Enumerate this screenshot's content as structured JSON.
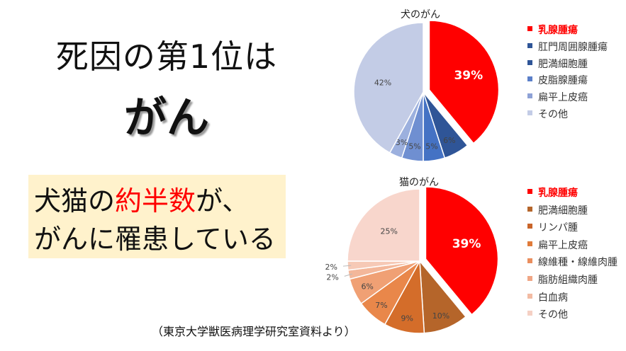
{
  "headline": {
    "line1": "死因の第1位は",
    "line2": "がん"
  },
  "box": {
    "part1": "犬猫の",
    "part2": "約半数",
    "part3": "が、",
    "line2": "がんに罹患している"
  },
  "source": "（東京大学獣医病理学研究室資料より）",
  "chart_data": [
    {
      "type": "pie",
      "title": "犬のがん",
      "slices": [
        {
          "label": "乳腺腫瘍",
          "value": 39,
          "data_label": "39%",
          "color": "#ff0000",
          "legend_color": "#ff0000",
          "bold": true,
          "exploded": true
        },
        {
          "label": "肛門周囲腺腫瘍",
          "value": 6,
          "data_label": "6%",
          "color": "#2f5597",
          "legend_color": "#2f5597"
        },
        {
          "label": "肥満細胞腫",
          "value": 5,
          "data_label": "5%",
          "color": "#4472c4",
          "legend_color": "#2f5597"
        },
        {
          "label": "皮脂腺腫瘍",
          "value": 5,
          "data_label": "5%",
          "color": "#6f8fd1",
          "legend_color": "#5b7fc9"
        },
        {
          "label": "扁平上皮癌",
          "value": 3,
          "data_label": "3%",
          "color": "#9cb0de",
          "legend_color": "#8ea2d6"
        },
        {
          "label": "その他",
          "value": 42,
          "data_label": "42%",
          "color": "#c3cce6",
          "legend_color": "#c3cce6"
        }
      ]
    },
    {
      "type": "pie",
      "title": "猫のがん",
      "slices": [
        {
          "label": "乳腺腫瘍",
          "value": 39,
          "data_label": "39%",
          "color": "#ff0000",
          "legend_color": "#ff0000",
          "bold": true,
          "exploded": true
        },
        {
          "label": "肥満細胞腫",
          "value": 10,
          "data_label": "10%",
          "color": "#b5652a",
          "legend_color": "#b5652a"
        },
        {
          "label": "リンパ腫",
          "value": 9,
          "data_label": "9%",
          "color": "#d46d2a",
          "legend_color": "#c9652a"
        },
        {
          "label": "扁平上皮癌",
          "value": 7,
          "data_label": "7%",
          "color": "#e9874a",
          "legend_color": "#e07b3a"
        },
        {
          "label": "線維種・線維肉腫",
          "value": 6,
          "data_label": "6%",
          "color": "#f0a074",
          "legend_color": "#ea8e5e"
        },
        {
          "label": "脂肪組織肉腫",
          "value": 2,
          "data_label": "2%",
          "color": "#f3b79a",
          "legend_color": "#f0a685"
        },
        {
          "label": "白血病",
          "value": 2,
          "data_label": "2%",
          "color": "#f6c9b6",
          "legend_color": "#f3bba3"
        },
        {
          "label": "その他",
          "value": 25,
          "data_label": "25%",
          "color": "#f8d6cc",
          "legend_color": "#f5d0c4"
        }
      ]
    }
  ]
}
